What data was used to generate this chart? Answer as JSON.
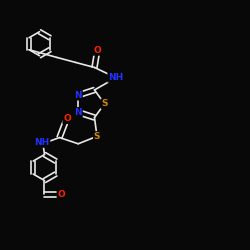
{
  "background_color": "#080808",
  "atom_colors": {
    "C": "#e8e8e8",
    "N": "#2233ff",
    "O": "#ff2200",
    "S": "#cc8800"
  },
  "bond_color": "#e8e8e8",
  "bond_width": 1.2,
  "font_size": 6.5
}
